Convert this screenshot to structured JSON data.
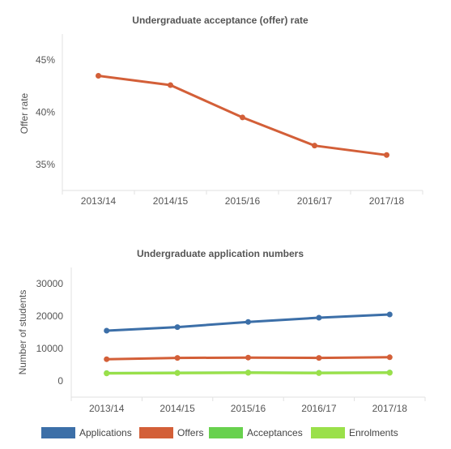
{
  "chart_data": [
    {
      "type": "line",
      "title": "Undergraduate acceptance (offer) rate",
      "xlabel": "",
      "ylabel": "Offer rate",
      "categories": [
        "2013/14",
        "2014/15",
        "2015/16",
        "2016/17",
        "2017/18"
      ],
      "yticks": [
        "35%",
        "40%",
        "45%"
      ],
      "ylim": [
        32.5,
        47.5
      ],
      "grid": false,
      "legend": "none",
      "series": [
        {
          "values": [
            43.5,
            42.6,
            39.5,
            36.8,
            35.9
          ],
          "color": "#d35f38"
        }
      ]
    },
    {
      "type": "line",
      "title": "Undergraduate application numbers",
      "xlabel": "",
      "ylabel": "Number of students",
      "categories": [
        "2013/14",
        "2014/15",
        "2015/16",
        "2016/17",
        "2017/18"
      ],
      "yticks": [
        "0",
        "10000",
        "20000",
        "30000"
      ],
      "ylim": [
        -5000,
        35000
      ],
      "grid": false,
      "legend": "bottom",
      "series": [
        {
          "name": "Applications",
          "values": [
            15500,
            16600,
            18200,
            19500,
            20500
          ],
          "color": "#3c6fa8"
        },
        {
          "name": "Offers",
          "values": [
            6700,
            7100,
            7200,
            7100,
            7300
          ],
          "color": "#d35f38"
        },
        {
          "name": "Acceptances",
          "values": [
            2400,
            2500,
            2600,
            2500,
            2600
          ],
          "color": "#68d14e"
        },
        {
          "name": "Enrolments",
          "values": [
            2300,
            2400,
            2500,
            2400,
            2500
          ],
          "color": "#9ae04a"
        }
      ]
    }
  ]
}
